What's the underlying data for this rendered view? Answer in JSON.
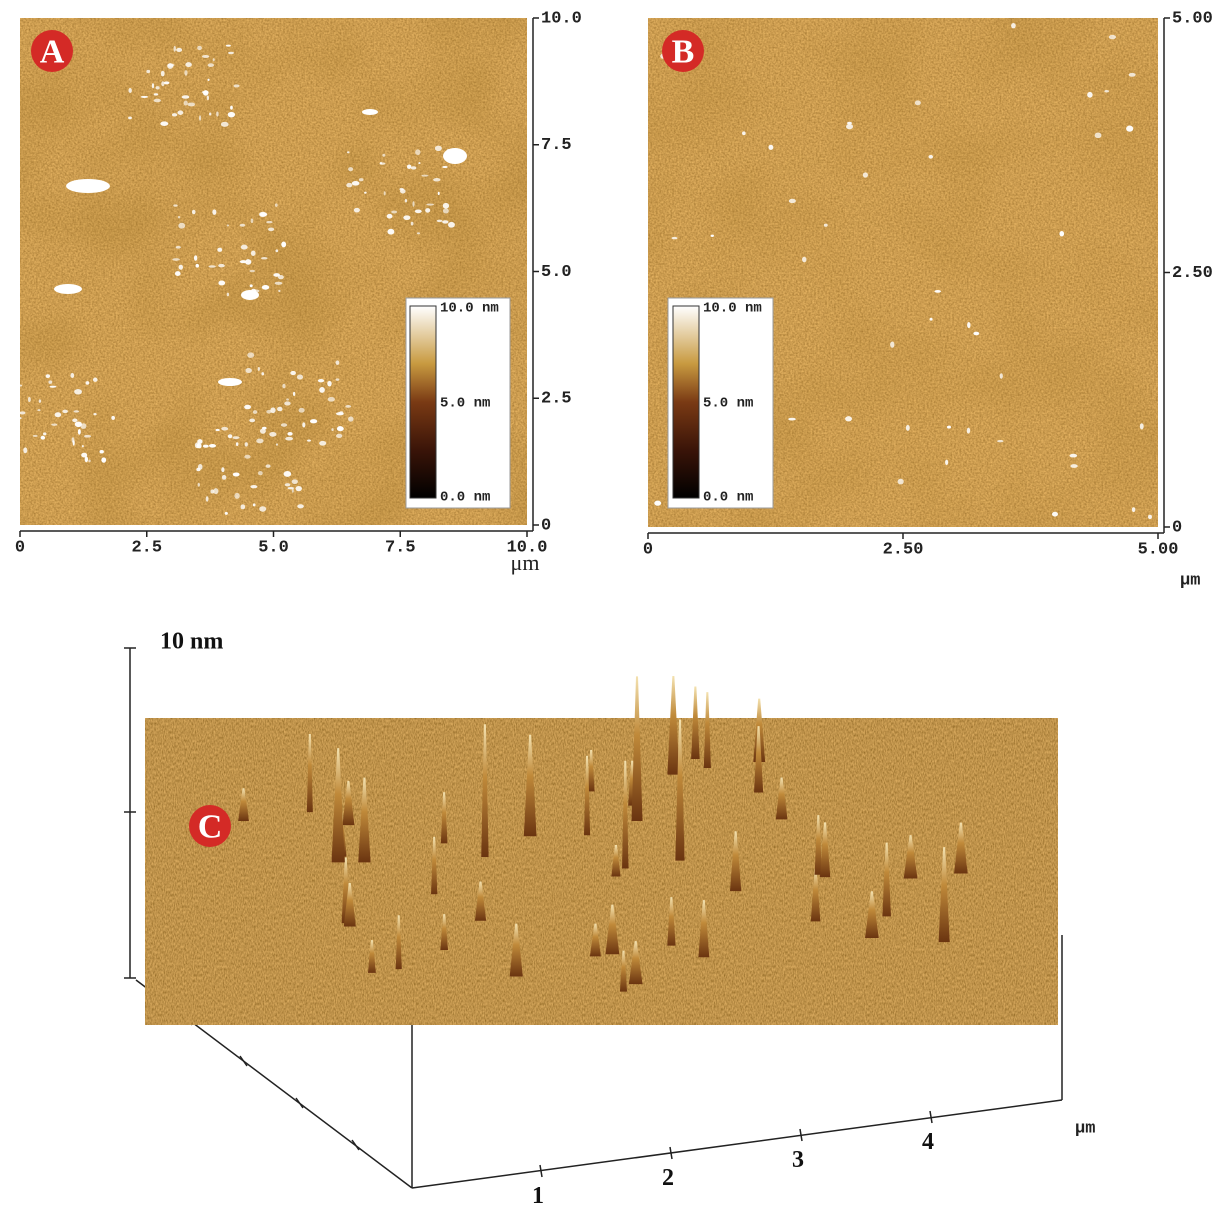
{
  "panels": [
    {
      "label": "A",
      "x_ticks": [
        "0",
        "2.5",
        "5.0",
        "7.5",
        "10.0"
      ],
      "y_ticks": [
        "0",
        "2.5",
        "5.0",
        "7.5",
        "10.0"
      ],
      "x_unit": "μm",
      "colorbar": [
        "10.0 nm",
        "5.0 nm",
        "0.0 nm"
      ]
    },
    {
      "label": "B",
      "x_ticks": [
        "0",
        "2.50",
        "5.00"
      ],
      "y_ticks": [
        "0",
        "2.50",
        "5.00"
      ],
      "x_unit": "μm",
      "colorbar": [
        "10.0 nm",
        "5.0 nm",
        "0.0 nm"
      ]
    },
    {
      "label": "C",
      "z_label": "10 nm",
      "x_ticks": [
        "1",
        "2",
        "3",
        "4"
      ],
      "x_unit": "μm"
    }
  ]
}
